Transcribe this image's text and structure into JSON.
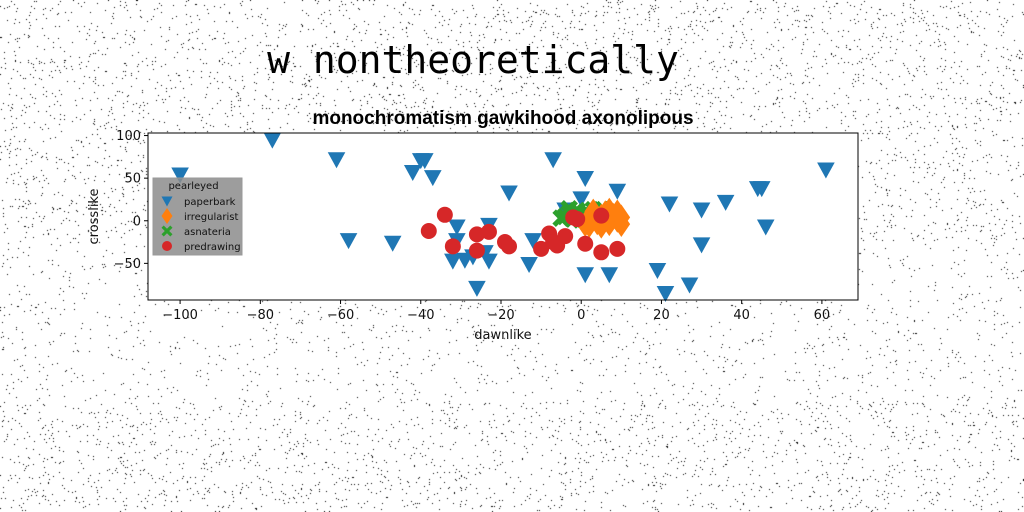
{
  "suptitle": "w nontheoretically",
  "colors": {
    "paperbark": "#1f77b4",
    "irregularist": "#ff7f0e",
    "asnateria": "#2ca02c",
    "predrawing": "#d62728",
    "legend_bg": "#8c8c8c"
  },
  "chart_data": {
    "type": "scatter",
    "title": "monochromatism gawkihood axonolipous",
    "xlabel": "dawnlike",
    "ylabel": "crosslike",
    "xlim": [
      -108,
      69
    ],
    "ylim": [
      -93,
      103
    ],
    "xticks": [
      -100,
      -80,
      -60,
      -40,
      -20,
      0,
      20,
      40,
      60
    ],
    "yticks": [
      -50,
      0,
      50,
      100
    ],
    "grid": false,
    "legend": {
      "title": "pearleyed",
      "placement": "center-left"
    },
    "series": [
      {
        "name": "paperbark",
        "marker": "triangle-down",
        "points": [
          [
            -100,
            54
          ],
          [
            -77,
            95
          ],
          [
            -61,
            72
          ],
          [
            -58,
            -23
          ],
          [
            -47,
            -26
          ],
          [
            -42,
            57
          ],
          [
            -40,
            71
          ],
          [
            -39,
            71
          ],
          [
            -37,
            51
          ],
          [
            -32,
            -47
          ],
          [
            -31,
            -7
          ],
          [
            -31,
            -23
          ],
          [
            -29,
            -46
          ],
          [
            -27,
            -42
          ],
          [
            -26,
            -79
          ],
          [
            -24,
            -37
          ],
          [
            -23,
            -47
          ],
          [
            -23,
            -5
          ],
          [
            -18,
            33
          ],
          [
            -13,
            -51
          ],
          [
            -12,
            -23
          ],
          [
            -7,
            72
          ],
          [
            -4,
            13
          ],
          [
            0,
            26
          ],
          [
            1,
            50
          ],
          [
            1,
            -63
          ],
          [
            7,
            -63
          ],
          [
            9,
            35
          ],
          [
            19,
            -58
          ],
          [
            21,
            -85
          ],
          [
            22,
            20
          ],
          [
            27,
            -75
          ],
          [
            30,
            13
          ],
          [
            30,
            -28
          ],
          [
            36,
            22
          ],
          [
            44,
            38
          ],
          [
            45,
            38
          ],
          [
            46,
            -7
          ],
          [
            61,
            60
          ]
        ]
      },
      {
        "name": "irregularist",
        "marker": "diamond",
        "points": [
          [
            1,
            -4
          ],
          [
            2,
            3
          ],
          [
            3,
            7
          ],
          [
            4,
            -2
          ],
          [
            5,
            5
          ],
          [
            6,
            9
          ],
          [
            7,
            -3
          ],
          [
            8,
            6
          ],
          [
            9,
            1
          ],
          [
            9,
            10
          ],
          [
            10,
            -4
          ],
          [
            10,
            4
          ],
          [
            7,
            12
          ],
          [
            5,
            -6
          ],
          [
            3,
            11
          ],
          [
            2,
            -5
          ]
        ]
      },
      {
        "name": "asnateria",
        "marker": "x",
        "points": [
          [
            -4,
            5
          ],
          [
            -3,
            9
          ],
          [
            -2,
            2
          ],
          [
            -1,
            12
          ],
          [
            0,
            6
          ],
          [
            1,
            10
          ],
          [
            2,
            3
          ],
          [
            3,
            13
          ],
          [
            4,
            8
          ],
          [
            5,
            13
          ],
          [
            6,
            4
          ],
          [
            -5,
            3
          ],
          [
            -3,
            14
          ],
          [
            0,
            1
          ],
          [
            2,
            8
          ],
          [
            4,
            2
          ]
        ]
      },
      {
        "name": "predrawing",
        "marker": "circle",
        "points": [
          [
            -38,
            -12
          ],
          [
            -34,
            7
          ],
          [
            -32,
            -30
          ],
          [
            -26,
            -16
          ],
          [
            -26,
            -35
          ],
          [
            -23,
            -13
          ],
          [
            -19,
            -25
          ],
          [
            -18,
            -30
          ],
          [
            -10,
            -33
          ],
          [
            -8,
            -15
          ],
          [
            -7,
            -25
          ],
          [
            -6,
            -29
          ],
          [
            -4,
            -18
          ],
          [
            -2,
            4
          ],
          [
            -1,
            2
          ],
          [
            1,
            -27
          ],
          [
            5,
            6
          ],
          [
            5,
            -37
          ],
          [
            9,
            -33
          ]
        ]
      }
    ]
  }
}
